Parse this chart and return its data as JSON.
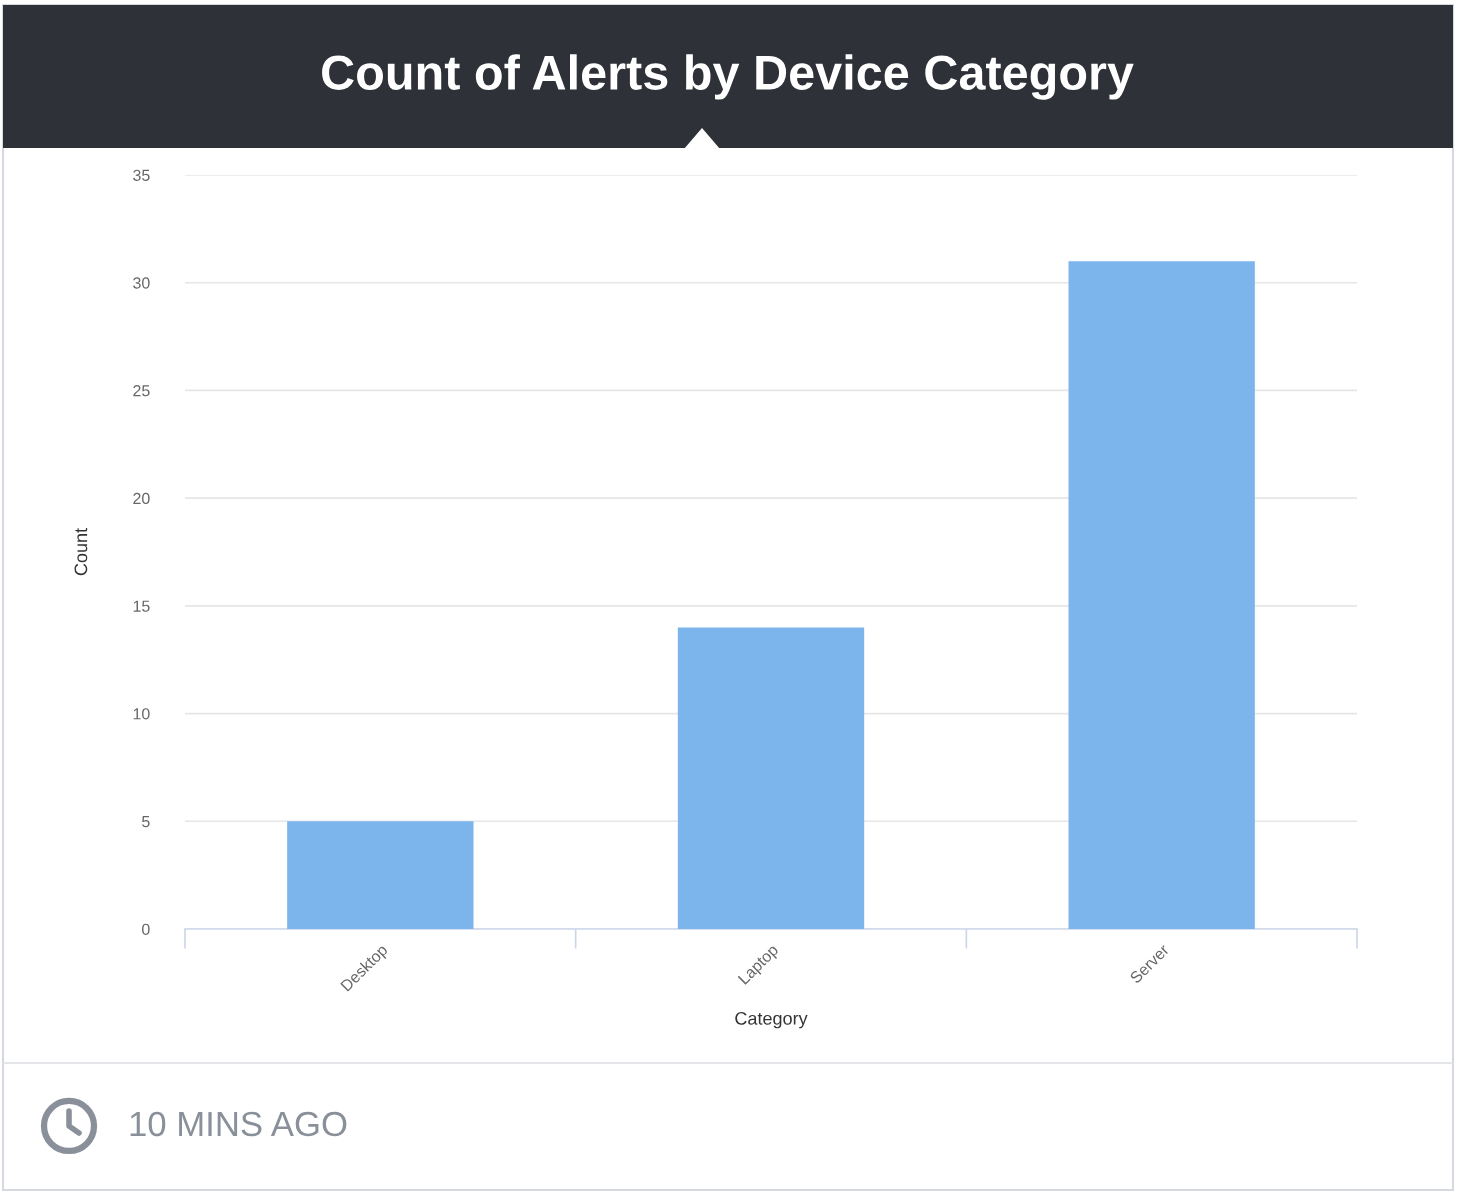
{
  "chart_data": {
    "type": "bar",
    "title": "Count of Alerts by Device Category",
    "categories": [
      "Desktop",
      "Laptop",
      "Server"
    ],
    "values": [
      5,
      14,
      31
    ],
    "color": "#7cb5ec",
    "xlabel": "Category",
    "ylabel": "Count",
    "ylim": [
      0,
      35
    ],
    "yticks": [
      0,
      5,
      10,
      15,
      20,
      25,
      30,
      35
    ],
    "grid": "y",
    "annotations": [
      "10 MINS AGO"
    ]
  }
}
